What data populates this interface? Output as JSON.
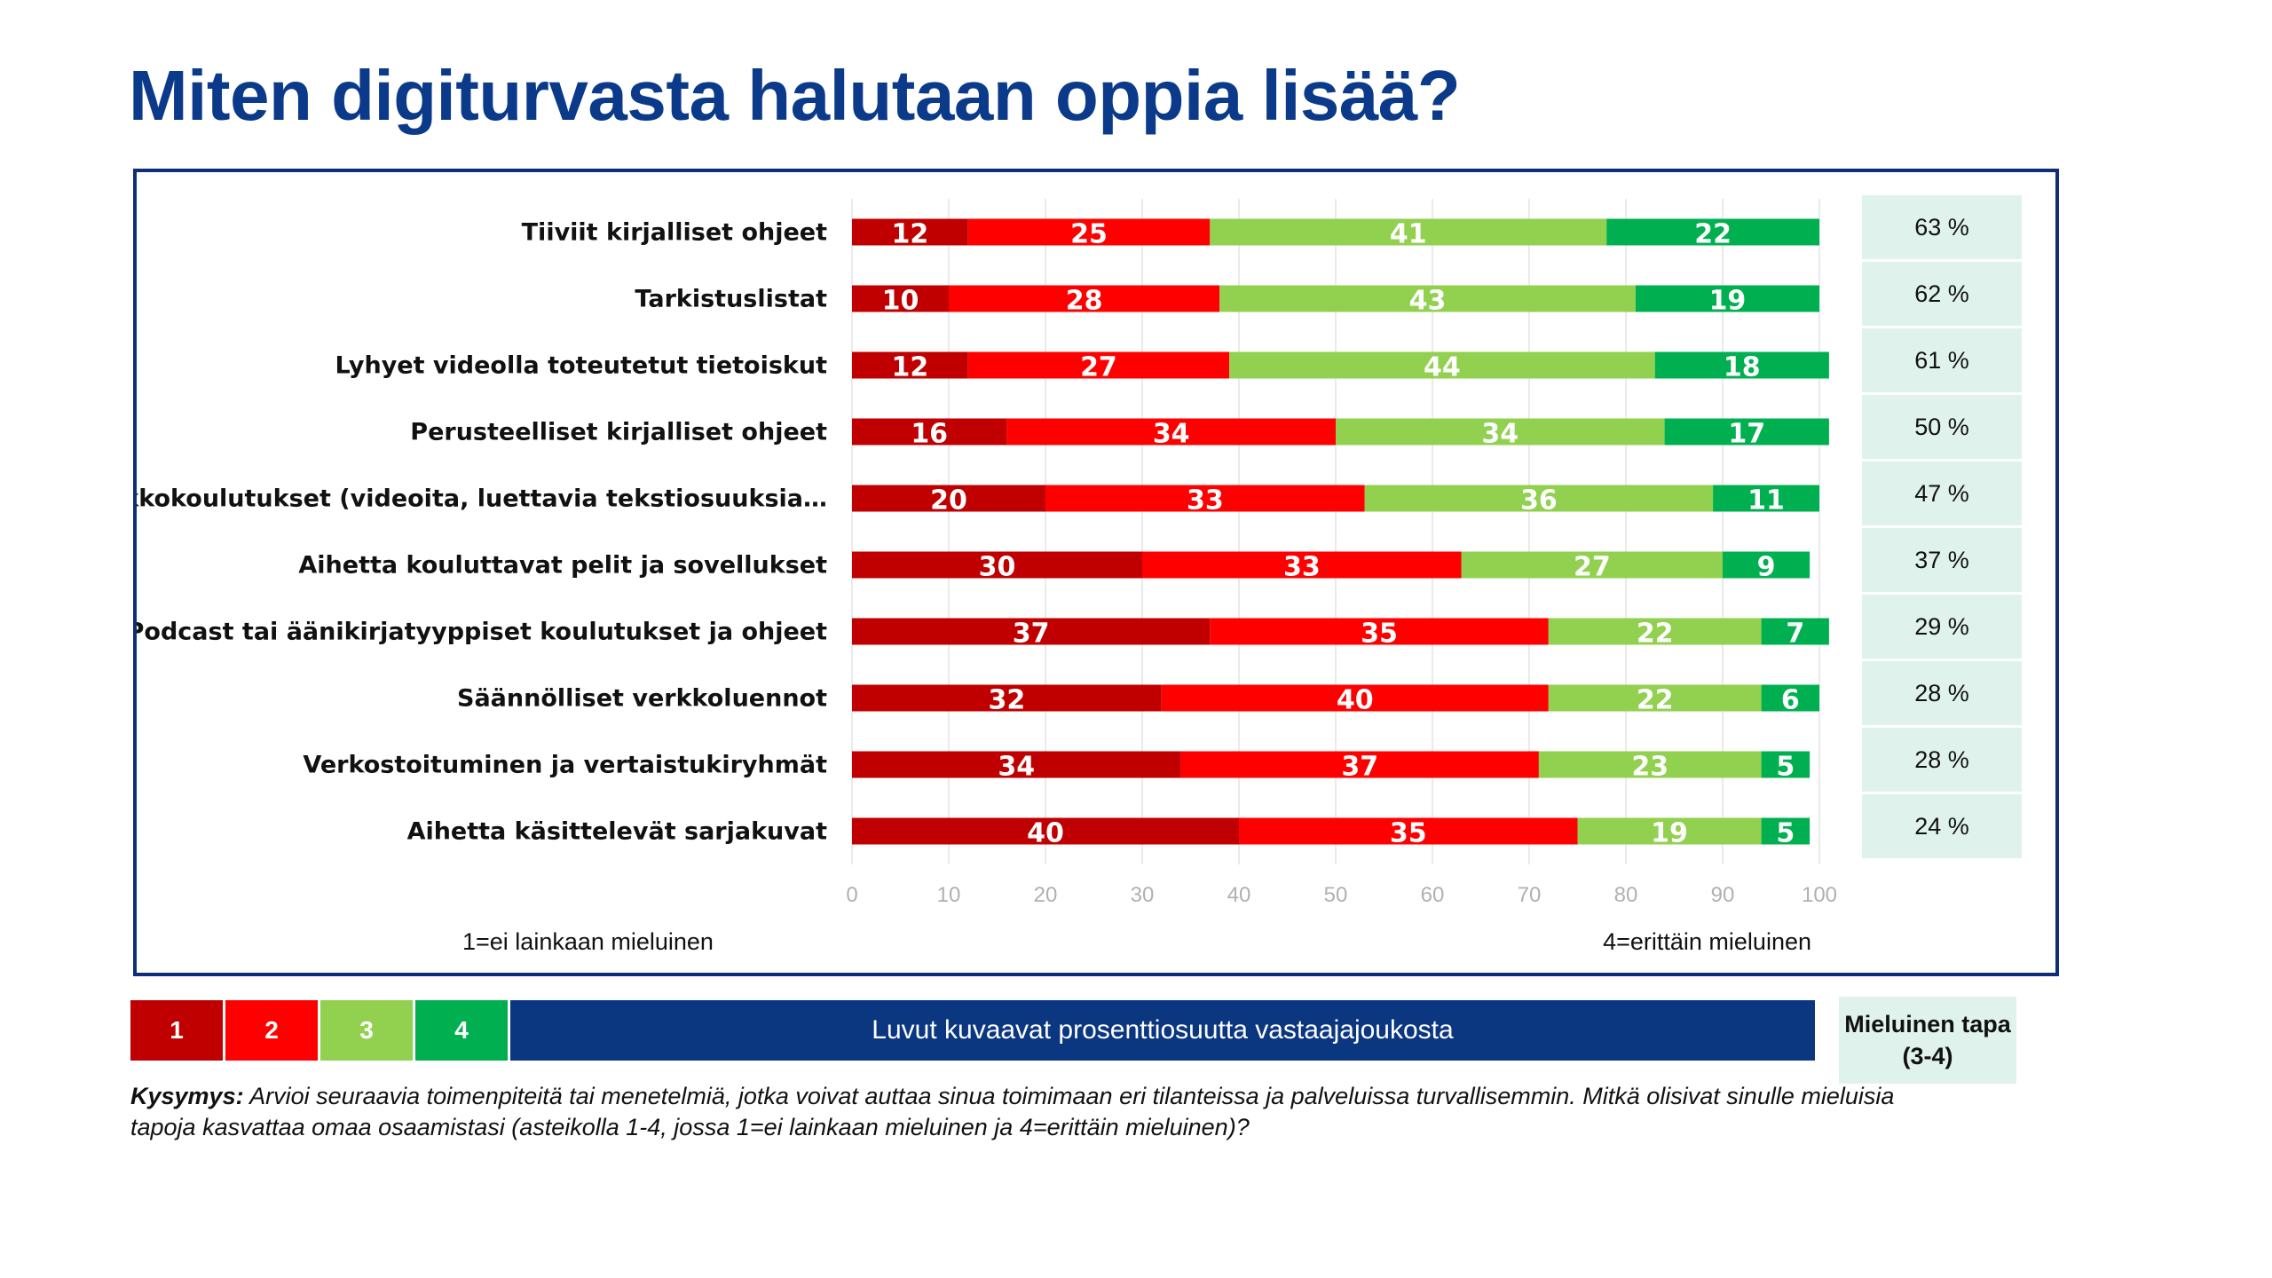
{
  "page": {
    "title": "Miten digiturvasta halutaan oppia lisää?"
  },
  "colors": {
    "1": "#c00000",
    "2": "#ff0000",
    "3": "#92d050",
    "4": "#00b050",
    "accent": "#0b3a8a"
  },
  "chart_data": {
    "type": "bar",
    "orientation": "horizontal",
    "stacked": true,
    "xlim": [
      0,
      100
    ],
    "xticks": [
      0,
      10,
      20,
      30,
      40,
      50,
      60,
      70,
      80,
      90,
      100
    ],
    "grid": true,
    "categories": [
      "Tiiviit kirjalliset ohjeet",
      "Tarkistuslistat",
      "Lyhyet videolla toteutetut tietoiskut",
      "Perusteelliset kirjalliset ohjeet",
      "Verkkokoulutukset (videoita, luettavia tekstiosuuksia…",
      "Aihetta kouluttavat pelit ja sovellukset",
      "Podcast tai äänikirjatyyppiset koulutukset ja ohjeet",
      "Säännölliset verkkoluennot",
      "Verkostoituminen ja vertaistukiryhmät",
      "Aihetta käsittelevät sarjakuvat"
    ],
    "series": [
      {
        "name": "1",
        "color": "#c00000",
        "values": [
          12,
          10,
          12,
          16,
          20,
          30,
          37,
          32,
          34,
          40
        ]
      },
      {
        "name": "2",
        "color": "#ff0000",
        "values": [
          25,
          28,
          27,
          34,
          33,
          33,
          35,
          40,
          37,
          35
        ]
      },
      {
        "name": "3",
        "color": "#92d050",
        "values": [
          41,
          43,
          44,
          34,
          36,
          27,
          22,
          22,
          23,
          19
        ]
      },
      {
        "name": "4",
        "color": "#00b050",
        "values": [
          22,
          19,
          18,
          17,
          11,
          9,
          7,
          6,
          5,
          5
        ]
      }
    ],
    "scale_left": "1=ei lainkaan mieluinen",
    "scale_right": "4=erittäin mieluinen"
  },
  "share": {
    "header": "Mieluinen tapa (3-4)",
    "values": [
      "63 %",
      "62 %",
      "61 %",
      "50 %",
      "47 %",
      "37 %",
      "29 %",
      "28 %",
      "28 %",
      "24 %"
    ]
  },
  "legend": {
    "items": [
      "1",
      "2",
      "3",
      "4"
    ],
    "note": "Luvut kuvaavat prosenttiosuutta vastaajajoukosta"
  },
  "question": {
    "label": "Kysymys:",
    "text": "Arvioi seuraavia toimenpiteitä tai menetelmiä, jotka voivat auttaa sinua toimimaan eri tilanteissa ja palveluissa turvallisemmin. Mitkä olisivat sinulle mieluisia tapoja kasvattaa omaa osaamistasi (asteikolla 1-4, jossa 1=ei lainkaan mieluinen ja 4=erittäin mieluinen)?"
  }
}
